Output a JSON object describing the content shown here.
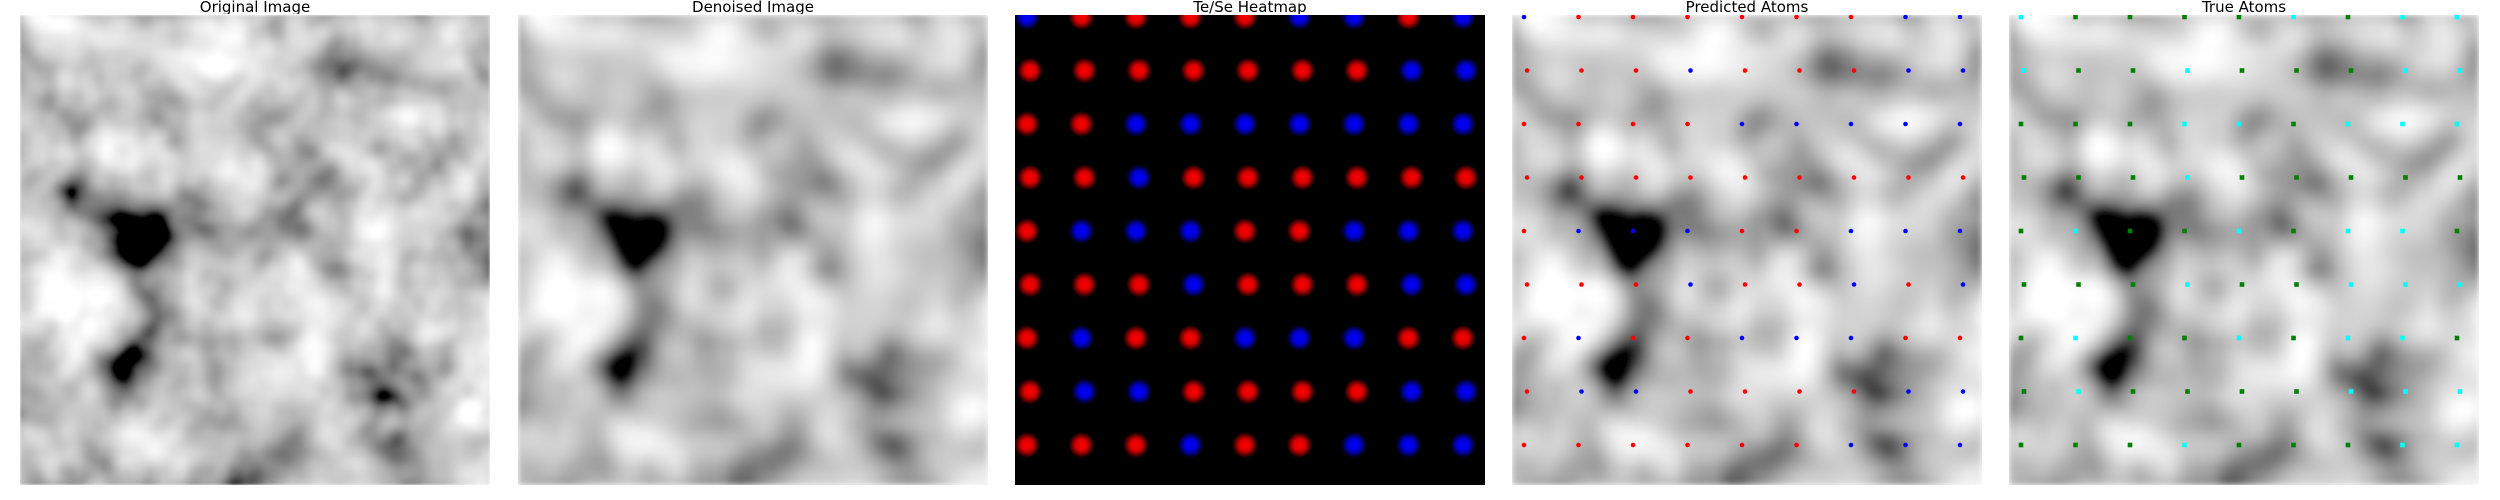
{
  "panels": [
    {
      "id": "original",
      "title": "Original Image"
    },
    {
      "id": "denoised",
      "title": "Denoised Image"
    },
    {
      "id": "heatmap",
      "title": "Te/Se Heatmap"
    },
    {
      "id": "predicted",
      "title": "Predicted Atoms"
    },
    {
      "id": "true",
      "title": "True Atoms"
    }
  ],
  "colors": {
    "se": "#0000ff",
    "te": "#ff0000",
    "true_a": "#00ffff",
    "true_b": "#008000",
    "heatmap_bg": "#000000"
  },
  "lattice": {
    "rows": 9,
    "cols": 9
  },
  "heatmap_types": [
    "BRRRRBBRB",
    "RRRRRRRBB",
    "RRBBBBBBB",
    "RRBRRRRRR",
    "RBBBRRBBB",
    "RRRBRRRBB",
    "RBRRBBBRR",
    "RBBRRRRBB",
    "RRRBRRBBB"
  ],
  "predicted_types": [
    "BRRRRRRBB",
    "RRRBRRRBB",
    "RRRRBBBBB",
    "RRRRRRRRR",
    "RBBBRRBBB",
    "RRRBRRBRB",
    "RBRRBBBRR",
    "RBBRRRRBB",
    "RRRRRRBBB"
  ],
  "true_types": [
    "CGGGGCGCC",
    "CGGCGGGCC",
    "GGGCCGCCC",
    "GGGCGGGGG",
    "GCGGCGCCG",
    "GGGCGGCCC",
    "GCGGCGCCG",
    "GCGGGGCCC",
    "GGGCGGGCC"
  ]
}
